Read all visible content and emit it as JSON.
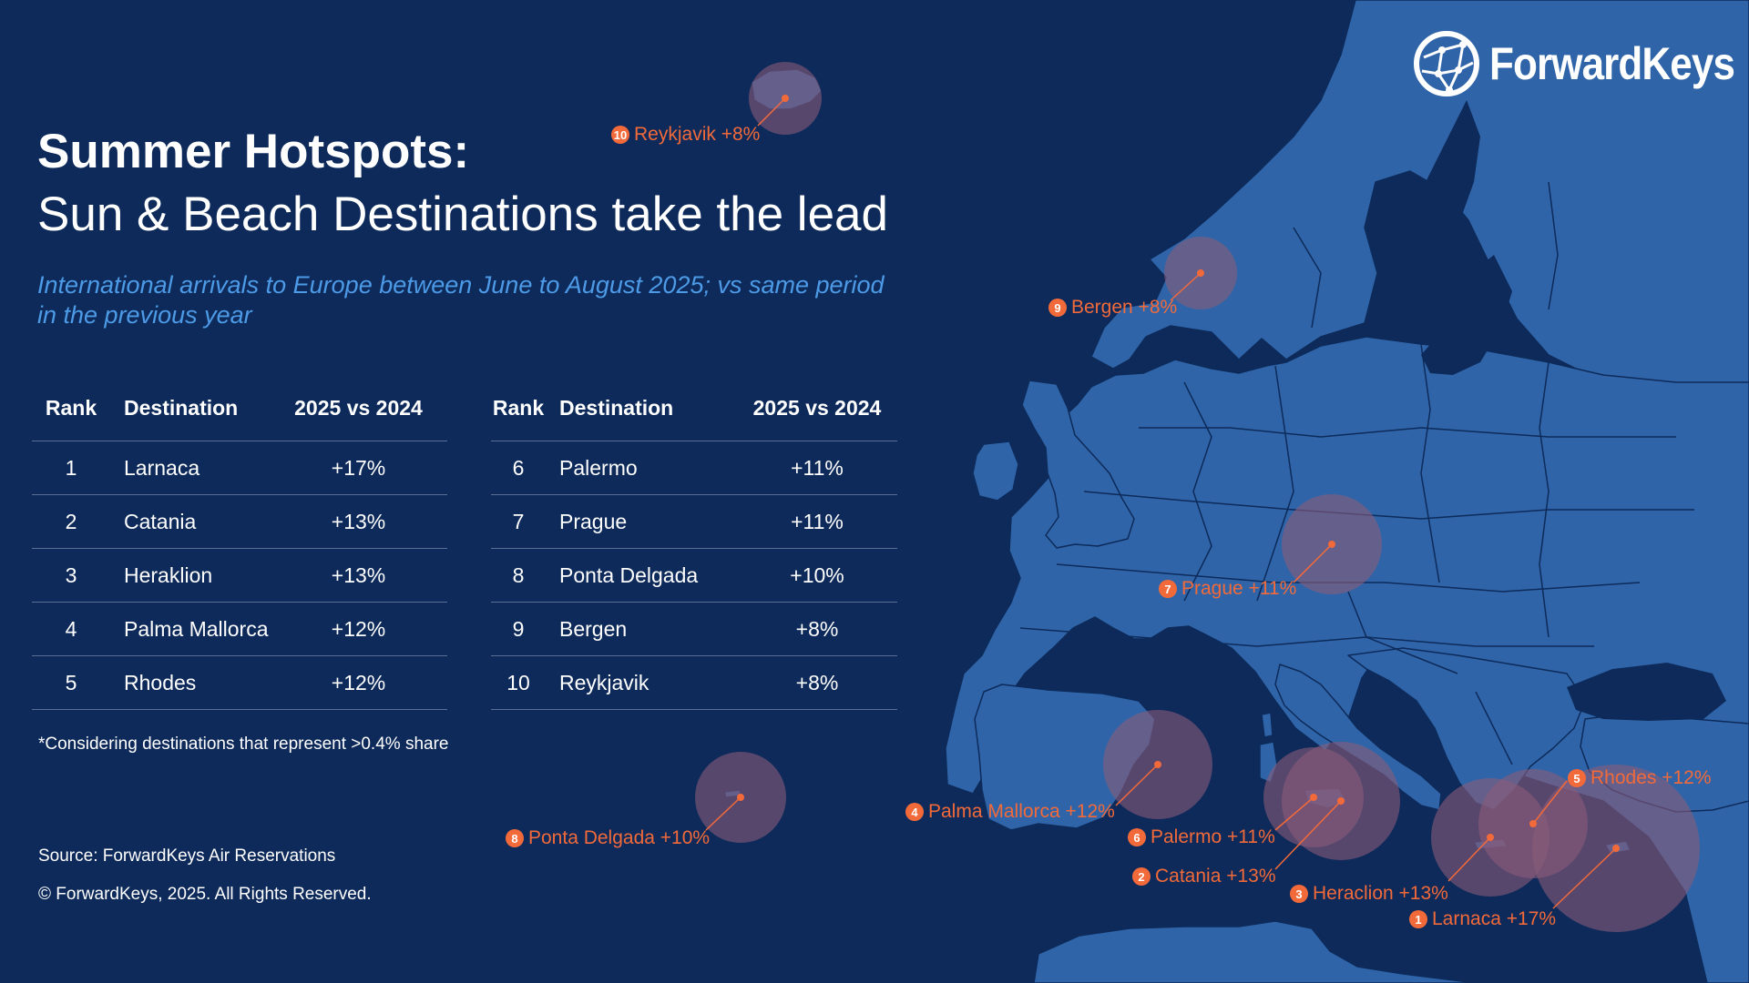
{
  "brand": {
    "name": "ForwardKeys"
  },
  "header": {
    "title": "Summer Hotspots:",
    "subtitle": "Sun & Beach Destinations take the lead",
    "description": "International arrivals to Europe between June to August 2025; vs same period in the previous year"
  },
  "table": {
    "headers": {
      "rank": "Rank",
      "destination": "Destination",
      "change": "2025 vs 2024"
    },
    "rows": [
      {
        "rank": "1",
        "destination": "Larnaca",
        "change": "+17%"
      },
      {
        "rank": "2",
        "destination": "Catania",
        "change": "+13%"
      },
      {
        "rank": "3",
        "destination": "Heraklion",
        "change": "+13%"
      },
      {
        "rank": "4",
        "destination": "Palma Mallorca",
        "change": "+12%"
      },
      {
        "rank": "5",
        "destination": "Rhodes",
        "change": "+12%"
      },
      {
        "rank": "6",
        "destination": "Palermo",
        "change": "+11%"
      },
      {
        "rank": "7",
        "destination": "Prague",
        "change": "+11%"
      },
      {
        "rank": "8",
        "destination": "Ponta Delgada",
        "change": "+10%"
      },
      {
        "rank": "9",
        "destination": "Bergen",
        "change": "+8%"
      },
      {
        "rank": "10",
        "destination": "Reykjavik",
        "change": "+8%"
      }
    ]
  },
  "footnote": "*Considering destinations that represent >0.4% share",
  "source": "Source: ForwardKeys Air Reservations",
  "copyright": "© ForwardKeys, 2025. All Rights Reserved.",
  "map_labels": [
    {
      "rank": "1",
      "text": "Larnaca +17%"
    },
    {
      "rank": "2",
      "text": "Catania +13%"
    },
    {
      "rank": "3",
      "text": "Heraclion +13%"
    },
    {
      "rank": "4",
      "text": "Palma Mallorca +12%"
    },
    {
      "rank": "5",
      "text": "Rhodes +12%"
    },
    {
      "rank": "6",
      "text": "Palermo +11%"
    },
    {
      "rank": "7",
      "text": "Prague +11%"
    },
    {
      "rank": "8",
      "text": "Ponta Delgada +10%"
    },
    {
      "rank": "9",
      "text": "Bergen +8%"
    },
    {
      "rank": "10",
      "text": "Reykjavik +8%"
    }
  ],
  "colors": {
    "background": "#0d2a5a",
    "land": "#2f65a8",
    "border": "#0d2a5a",
    "accent": "#f26a3a",
    "highlight": "#8a5b7a",
    "subtitle": "#4d9ae6"
  }
}
